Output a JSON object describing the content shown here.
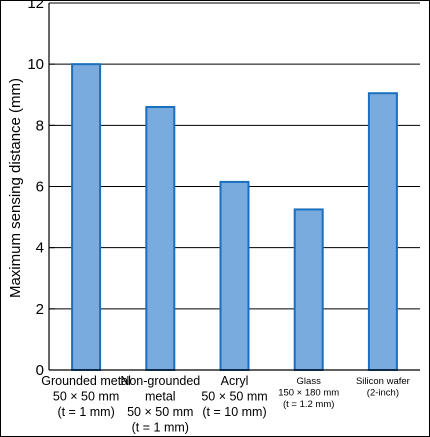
{
  "chart_data": {
    "type": "bar",
    "ylabel": "Maximum sensing distance (mm)",
    "ylim": [
      0,
      12
    ],
    "yticks": [
      0,
      2,
      4,
      6,
      8,
      10,
      12
    ],
    "grid": true,
    "categories": [
      {
        "lines": [
          "Grounded metal",
          "50 × 50 mm",
          "(t = 1 mm)"
        ],
        "size": "normal"
      },
      {
        "lines": [
          "Non-grounded",
          "metal",
          "50 × 50 mm",
          "(t = 1 mm)"
        ],
        "size": "normal"
      },
      {
        "lines": [
          "Acryl",
          "50 × 50 mm",
          "(t = 10 mm)"
        ],
        "size": "normal"
      },
      {
        "lines": [
          "Glass",
          "150 × 180 mm",
          "(t = 1.2 mm)"
        ],
        "size": "small"
      },
      {
        "lines": [
          "Silicon wafer",
          "(2-inch)"
        ],
        "size": "small"
      }
    ],
    "values": [
      10.0,
      8.6,
      6.15,
      5.25,
      9.05
    ],
    "bar_color": "#7aabdf",
    "bar_edge_color": "#1a6fbf"
  }
}
